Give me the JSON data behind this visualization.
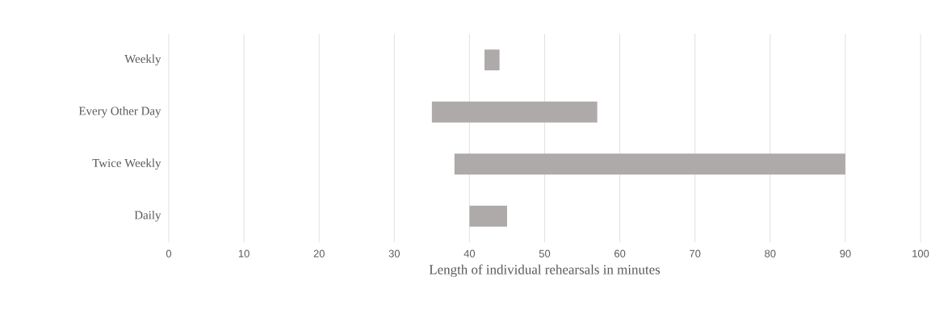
{
  "chart_data": {
    "type": "bar",
    "orientation": "horizontal",
    "xlabel": "Length of individual rehearsals in minutes",
    "categories": [
      "Weekly",
      "Every Other Day",
      "Twice Weekly",
      "Daily"
    ],
    "base": [
      42,
      35,
      38,
      40
    ],
    "values": [
      2,
      22,
      52,
      5
    ],
    "color": "#aeaaaa",
    "xlim": [
      0,
      100
    ],
    "xticks": [
      0,
      10,
      20,
      30,
      40,
      50,
      60,
      70,
      80,
      90,
      100
    ],
    "grid": "x"
  }
}
